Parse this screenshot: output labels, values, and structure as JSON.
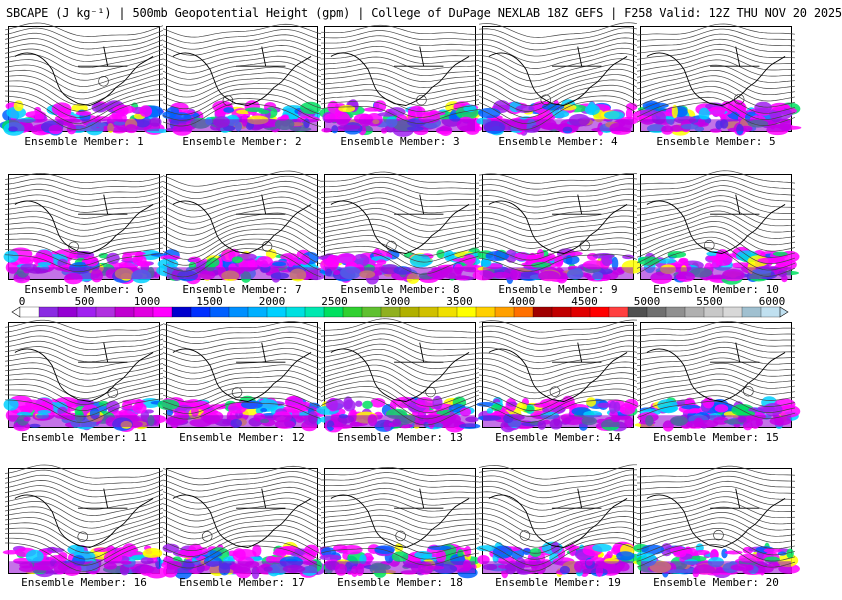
{
  "header": {
    "title": "SBCAPE (J kg⁻¹) | 500mb Geopotential Height (gpm) | College of DuPage NEXLAB 18Z GEFS | F258 Valid: 12Z THU NOV 20 2025"
  },
  "members": [
    {
      "label": "Ensemble Member: 1"
    },
    {
      "label": "Ensemble Member: 2"
    },
    {
      "label": "Ensemble Member: 3"
    },
    {
      "label": "Ensemble Member: 4"
    },
    {
      "label": "Ensemble Member: 5"
    },
    {
      "label": "Ensemble Member: 6"
    },
    {
      "label": "Ensemble Member: 7"
    },
    {
      "label": "Ensemble Member: 8"
    },
    {
      "label": "Ensemble Member: 9"
    },
    {
      "label": "Ensemble Member: 10"
    },
    {
      "label": "Ensemble Member: 11"
    },
    {
      "label": "Ensemble Member: 12"
    },
    {
      "label": "Ensemble Member: 13"
    },
    {
      "label": "Ensemble Member: 14"
    },
    {
      "label": "Ensemble Member: 15"
    },
    {
      "label": "Ensemble Member: 16"
    },
    {
      "label": "Ensemble Member: 17"
    },
    {
      "label": "Ensemble Member: 18"
    },
    {
      "label": "Ensemble Member: 19"
    },
    {
      "label": "Ensemble Member: 20"
    }
  ],
  "colorbar": {
    "ticks": [
      "0",
      "500",
      "1000",
      "1500",
      "2000",
      "2500",
      "3000",
      "3500",
      "4000",
      "4500",
      "5000",
      "5500",
      "6000"
    ],
    "colors": [
      "#ffffff",
      "#8a2be2",
      "#9400d3",
      "#a020f0",
      "#b030e0",
      "#c000d0",
      "#e000e0",
      "#ff00ff",
      "#0000cd",
      "#0030ff",
      "#0060ff",
      "#0090ff",
      "#00b0ff",
      "#00d0ff",
      "#00e0e0",
      "#00e8b0",
      "#00e060",
      "#30d030",
      "#60c030",
      "#90b020",
      "#b0b000",
      "#d0c000",
      "#f0e000",
      "#ffff00",
      "#ffd000",
      "#ffa000",
      "#ff7000",
      "#a00000",
      "#c00000",
      "#e00000",
      "#ff0000",
      "#ff4040",
      "#505050",
      "#707070",
      "#909090",
      "#b0b0b0",
      "#c8c8c8",
      "#d8d8d8",
      "#a0c0d0",
      "#c0e0f0"
    ],
    "band_colors": [
      "#ff00ff",
      "#a020f0",
      "#0060ff",
      "#00d0ff",
      "#00e060",
      "#ffff00"
    ]
  }
}
